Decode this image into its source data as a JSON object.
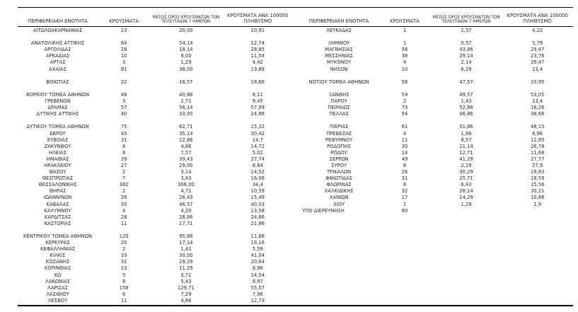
{
  "table": {
    "headers": {
      "region": "ΠΕΡΙΦΕΡΕΙΑΚΗ ΕΝΟΤΗΤΑ",
      "cases": "ΚΡΟΥΣΜΑΤΑ",
      "avg7": "ΜΕΣΟΣ ΟΡΟΣ ΚΡΟΥΣΜΑΤΩΝ ΤΩΝ ΤΕΛΕΥΤΑΙΩΝ 7 ΗΜΕΡΩΝ",
      "per100k": "ΚΡΟΥΣΜΑΤΑ ΑΝΑ 100000 ΠΛΗΘΥΣΜΟ"
    },
    "left_rows": [
      {
        "region": "ΑΙΤΩΛΟΑΚΑΡΝΑΝΙΑΣ",
        "cases": "23",
        "avg7": "20,00",
        "per100k": "10,91",
        "gap_before": false
      },
      {
        "region": "ΑΝΑΤΟΛΙΚΗΣ ΑΤΤΙΚΗΣ",
        "cases": "64",
        "avg7": "54,14",
        "per100k": "12,74",
        "gap_before": true
      },
      {
        "region": "ΑΡΓΟΛΙΔΑΣ",
        "cases": "28",
        "avg7": "18,14",
        "per100k": "28,85",
        "gap_before": false
      },
      {
        "region": "ΑΡΚΑΔΙΑΣ",
        "cases": "10",
        "avg7": "9,00",
        "per100k": "11,54",
        "gap_before": false
      },
      {
        "region": "ΑΡΤΑΣ",
        "cases": "3",
        "avg7": "1,29",
        "per100k": "4,42",
        "gap_before": false
      },
      {
        "region": "ΑΧΑΪΑΣ",
        "cases": "81",
        "avg7": "38,00",
        "per100k": "19,88",
        "gap_before": false
      },
      {
        "region": "ΒΟΙΩΤΙΑΣ",
        "cases": "22",
        "avg7": "18,57",
        "per100k": "18,66",
        "gap_before": true
      },
      {
        "region": "ΒΟΡΕΙΟΥ ΤΟΜΕΑ ΑΘΗΝΩΝ",
        "cases": "48",
        "avg7": "40,86",
        "per100k": "8,11",
        "gap_before": true
      },
      {
        "region": "ΓΡΕΒΕΝΩΝ",
        "cases": "3",
        "avg7": "2,71",
        "per100k": "9,45",
        "gap_before": false
      },
      {
        "region": "ΔΡΑΜΑΣ",
        "cases": "57",
        "avg7": "56,14",
        "per100k": "57,99",
        "gap_before": false
      },
      {
        "region": "ΔΥΤΙΚΗΣ ΑΤΤΙΚΗΣ",
        "cases": "40",
        "avg7": "33,00",
        "per100k": "24,86",
        "gap_before": false
      },
      {
        "region": "ΔΥΤΙΚΟΥ ΤΟΜΕΑ ΑΘΗΝΩΝ",
        "cases": "75",
        "avg7": "62,71",
        "per100k": "15,32",
        "gap_before": true
      },
      {
        "region": "ΕΒΡΟΥ",
        "cases": "45",
        "avg7": "35,14",
        "per100k": "30,42",
        "gap_before": false
      },
      {
        "region": "ΕΥΒΟΙΑΣ",
        "cases": "31",
        "avg7": "22,86",
        "per100k": "14,7",
        "gap_before": false
      },
      {
        "region": "ΖΑΚΥΝΘΟΥ",
        "cases": "6",
        "avg7": "4,86",
        "per100k": "14,72",
        "gap_before": false
      },
      {
        "region": "ΗΛΕΙΑΣ",
        "cases": "8",
        "avg7": "7,57",
        "per100k": "5,02",
        "gap_before": false
      },
      {
        "region": "ΗΜΑΘΙΑΣ",
        "cases": "39",
        "avg7": "39,43",
        "per100k": "27,74",
        "gap_before": false
      },
      {
        "region": "ΗΡΑΚΛΕΙΟΥ",
        "cases": "27",
        "avg7": "29,00",
        "per100k": "8,84",
        "gap_before": false
      },
      {
        "region": "ΘΑΣΟΥ",
        "cases": "2",
        "avg7": "3,14",
        "per100k": "14,52",
        "gap_before": false
      },
      {
        "region": "ΘΕΣΠΡΩΤΙΑΣ",
        "cases": "7",
        "avg7": "3,43",
        "per100k": "16,06",
        "gap_before": false
      },
      {
        "region": "ΘΕΣΣΑΛΟΝΙΚΗΣ",
        "cases": "382",
        "avg7": "306,00",
        "per100k": "34,4",
        "gap_before": false
      },
      {
        "region": "ΘΗΡΑΣ",
        "cases": "2",
        "avg7": "4,71",
        "per100k": "10,59",
        "gap_before": false
      },
      {
        "region": "ΙΩΑΝΝΙΝΩΝ",
        "cases": "26",
        "avg7": "26,43",
        "per100k": "15,49",
        "gap_before": false
      },
      {
        "region": "ΚΑΒΑΛΑΣ",
        "cases": "50",
        "avg7": "46,57",
        "per100k": "40,03",
        "gap_before": false
      },
      {
        "region": "ΚΑΛΥΜΝΟΥ",
        "cases": "4",
        "avg7": "4,29",
        "per100k": "13,58",
        "gap_before": false
      },
      {
        "region": "ΚΑΡΔΙΤΣΑΣ",
        "cases": "28",
        "avg7": "28,86",
        "per100k": "24,66",
        "gap_before": false
      },
      {
        "region": "ΚΑΣΤΟΡΙΑΣ",
        "cases": "11",
        "avg7": "17,71",
        "per100k": "21,86",
        "gap_before": false
      },
      {
        "region": "ΚΕΝΤΡΙΚΟΥ ΤΟΜΕΑ ΑΘΗΝΩΝ",
        "cases": "120",
        "avg7": "95,86",
        "per100k": "11,66",
        "gap_before": true
      },
      {
        "region": "ΚΕΡΚΥΡΑΣ",
        "cases": "20",
        "avg7": "17,14",
        "per100k": "19,16",
        "gap_before": false
      },
      {
        "region": "ΚΕΦΑΛΛΗΝΙΑΣ",
        "cases": "2",
        "avg7": "1,43",
        "per100k": "5,59",
        "gap_before": false
      },
      {
        "region": "ΚΙΛΚΙΣ",
        "cases": "33",
        "avg7": "30,00",
        "per100k": "41,04",
        "gap_before": false
      },
      {
        "region": "ΚΟΖΑΝΗΣ",
        "cases": "31",
        "avg7": "29,29",
        "per100k": "20,64",
        "gap_before": false
      },
      {
        "region": "ΚΟΡΙΝΘΙΑΣ",
        "cases": "13",
        "avg7": "11,29",
        "per100k": "8,96",
        "gap_before": false
      },
      {
        "region": "ΚΩ",
        "cases": "5",
        "avg7": "3,71",
        "per100k": "14,54",
        "gap_before": false
      },
      {
        "region": "ΛΑΚΩΝΙΑΣ",
        "cases": "8",
        "avg7": "5,43",
        "per100k": "8,97",
        "gap_before": false
      },
      {
        "region": "ΛΑΡΙΣΑΣ",
        "cases": "158",
        "avg7": "129,71",
        "per100k": "55,57",
        "gap_before": false
      },
      {
        "region": "ΛΑΣΙΘΙΟΥ",
        "cases": "6",
        "avg7": "7,29",
        "per100k": "7,96",
        "gap_before": false
      },
      {
        "region": "ΛΕΣΒΟΥ",
        "cases": "11",
        "avg7": "4,86",
        "per100k": "12,73",
        "gap_before": false
      }
    ],
    "right_rows": [
      {
        "region": "ΛΕΥΚΑΔΑΣ",
        "cases": "1",
        "avg7": "2,57",
        "per100k": "4,22",
        "gap_before": false
      },
      {
        "region": "ΛΗΜΝΟΥ",
        "cases": "1",
        "avg7": "0,57",
        "per100k": "5,79",
        "gap_before": true
      },
      {
        "region": "ΜΑΓΝΗΣΙΑΣ",
        "cases": "56",
        "avg7": "43,86",
        "per100k": "29,47",
        "gap_before": false
      },
      {
        "region": "ΜΕΣΣΗΝΙΑΣ",
        "cases": "38",
        "avg7": "29,14",
        "per100k": "23,76",
        "gap_before": false
      },
      {
        "region": "ΜΥΚΟΝΟΥ",
        "cases": "4",
        "avg7": "2,14",
        "per100k": "39,47",
        "gap_before": false
      },
      {
        "region": "ΝΗΣΩΝ",
        "cases": "10",
        "avg7": "6,29",
        "per100k": "13,4",
        "gap_before": false
      },
      {
        "region": "ΝΟΤΙΟΥ ΤΟΜΕΑ ΑΘΗΝΩΝ",
        "cases": "58",
        "avg7": "47,57",
        "per100k": "10,95",
        "gap_before": true
      },
      {
        "region": "ΞΑΝΘΗΣ",
        "cases": "59",
        "avg7": "49,57",
        "per100k": "53,05",
        "gap_before": true
      },
      {
        "region": "ΠΑΡΟΥ",
        "cases": "2",
        "avg7": "1,43",
        "per100k": "13,4",
        "gap_before": false
      },
      {
        "region": "ΠΕΙΡΑΙΩΣ",
        "cases": "73",
        "avg7": "52,86",
        "per100k": "16,26",
        "gap_before": false
      },
      {
        "region": "ΠΕΛΛΑΣ",
        "cases": "54",
        "avg7": "46,86",
        "per100k": "38,66",
        "gap_before": false
      },
      {
        "region": "ΠΙΕΡΙΑΣ",
        "cases": "61",
        "avg7": "51,86",
        "per100k": "48,15",
        "gap_before": true
      },
      {
        "region": "ΠΡΕΒΕΖΑΣ",
        "cases": "4",
        "avg7": "1,86",
        "per100k": "6,96",
        "gap_before": false
      },
      {
        "region": "ΡΕΘΥΜΝΟΥ",
        "cases": "11",
        "avg7": "8,57",
        "per100k": "12,85",
        "gap_before": false
      },
      {
        "region": "ΡΟΔΟΠΗΣ",
        "cases": "30",
        "avg7": "21,14",
        "per100k": "26,78",
        "gap_before": false
      },
      {
        "region": "ΡΟΔΟΥ",
        "cases": "14",
        "avg7": "12,71",
        "per100k": "11,68",
        "gap_before": false
      },
      {
        "region": "ΣΕΡΡΩΝ",
        "cases": "49",
        "avg7": "41,29",
        "per100k": "27,77",
        "gap_before": false
      },
      {
        "region": "ΣΥΡΟΥ",
        "cases": "8",
        "avg7": "2,29",
        "per100k": "27,9",
        "gap_before": false
      },
      {
        "region": "ΤΡΙΚΑΛΩΝ",
        "cases": "26",
        "avg7": "30,29",
        "per100k": "19,83",
        "gap_before": false
      },
      {
        "region": "ΦΘΙΩΤΙΔΑΣ",
        "cases": "31",
        "avg7": "25,71",
        "per100k": "19,59",
        "gap_before": false
      },
      {
        "region": "ΦΛΩΡΙΝΑΣ",
        "cases": "8",
        "avg7": "6,43",
        "per100k": "15,56",
        "gap_before": false
      },
      {
        "region": "ΧΑΛΚΙΔΙΚΗΣ",
        "cases": "32",
        "avg7": "28,14",
        "per100k": "30,21",
        "gap_before": false
      },
      {
        "region": "ΧΑΝΙΩΝ",
        "cases": "17",
        "avg7": "14,29",
        "per100k": "10,86",
        "gap_before": false
      },
      {
        "region": "ΧΙΟΥ",
        "cases": "1",
        "avg7": "1,29",
        "per100k": "1,9",
        "gap_before": false
      },
      {
        "region": "ΥΠΟ ΔΙΕΡΕΥΝΗΣΗ",
        "cases": "80",
        "avg7": "",
        "per100k": "",
        "gap_before": false,
        "align": "left"
      }
    ]
  }
}
